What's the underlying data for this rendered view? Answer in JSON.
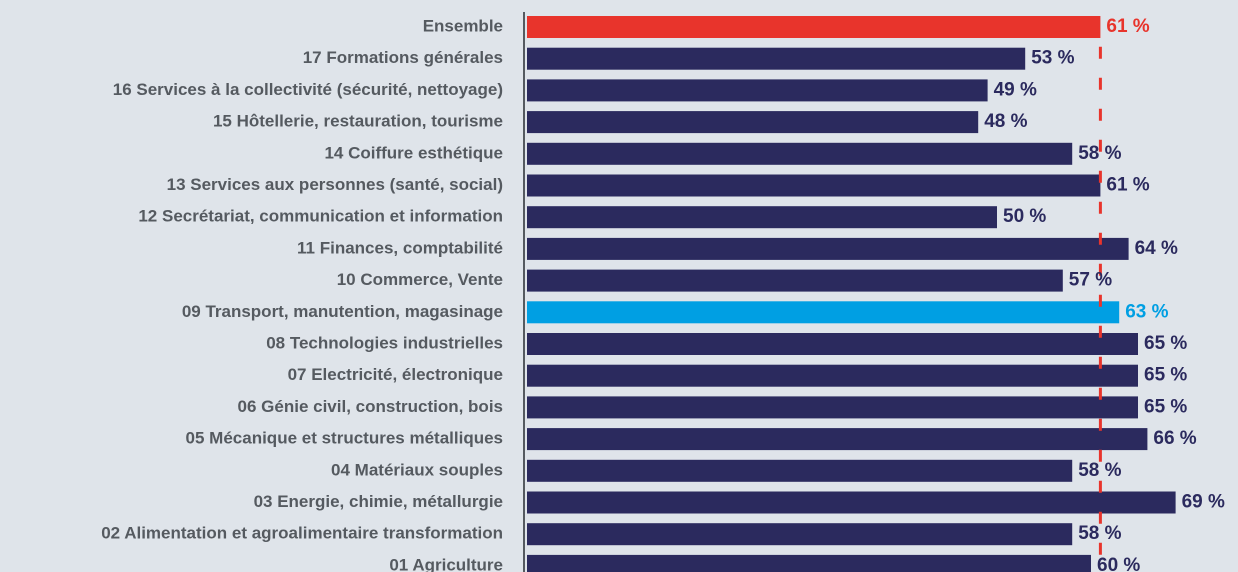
{
  "chart_data": {
    "type": "hbar",
    "categories": [
      "Ensemble",
      "17 Formations générales",
      "16 Services à la collectivité (sécurité, nettoyage)",
      "15 Hôtellerie, restauration, tourisme",
      "14 Coiffure esthétique",
      "13 Services aux personnes (santé, social)",
      "12 Secrétariat, communication et information",
      "11 Finances, comptabilité",
      "10 Commerce, Vente",
      "09 Transport, manutention, magasinage",
      "08 Technologies industrielles",
      "07 Electricité, électronique",
      "06 Génie civil, construction, bois",
      "05 Mécanique et structures métalliques",
      "04 Matériaux souples",
      "03 Energie, chimie, métallurgie",
      "02 Alimentation et agroalimentaire transformation",
      "01 Agriculture"
    ],
    "values": [
      61,
      53,
      49,
      48,
      58,
      61,
      50,
      64,
      57,
      63,
      65,
      65,
      65,
      66,
      58,
      69,
      58,
      60
    ],
    "value_labels": [
      "61 %",
      "53 %",
      "49 %",
      "48 %",
      "58 %",
      "61 %",
      "50 %",
      "64 %",
      "57 %",
      "63 %",
      "65 %",
      "65 %",
      "65 %",
      "66 %",
      "58 %",
      "69 %",
      "58 %",
      "60 %"
    ],
    "colors": [
      "#e8342c",
      "#2b2a5e",
      "#2b2a5e",
      "#2b2a5e",
      "#2b2a5e",
      "#2b2a5e",
      "#2b2a5e",
      "#2b2a5e",
      "#2b2a5e",
      "#009fe3",
      "#2b2a5e",
      "#2b2a5e",
      "#2b2a5e",
      "#2b2a5e",
      "#2b2a5e",
      "#2b2a5e",
      "#2b2a5e",
      "#2b2a5e"
    ],
    "reference_color": "#e8342c",
    "xlim": [
      0,
      75
    ]
  }
}
